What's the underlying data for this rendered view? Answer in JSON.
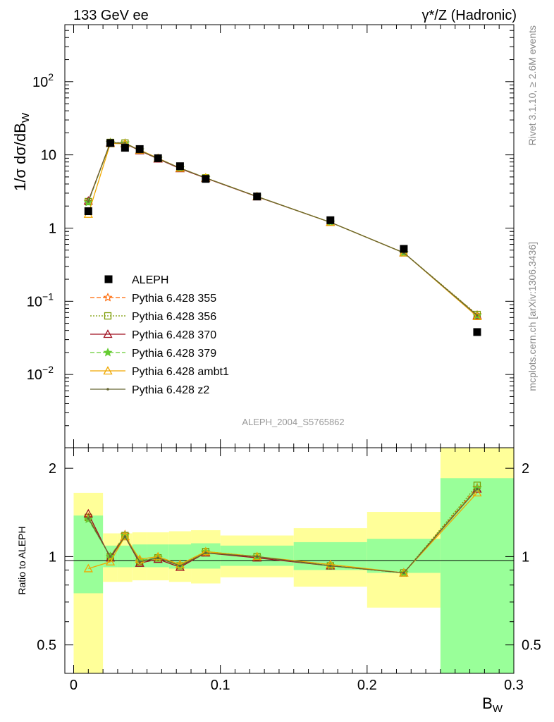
{
  "header": {
    "left": "133 GeV ee",
    "right": "γ*/Z (Hadronic)"
  },
  "side_text": {
    "rivet": "Rivet 3.1.10, ≥ 2.6M events",
    "site": "mcplots.cern.ch [arXiv:1306.3436]"
  },
  "analysis_id": "ALEPH_2004_S5765862",
  "axes": {
    "ylabel_main": "1/σ  dσ/dB",
    "ylabel_main_sub": "W",
    "ylabel_ratio": "Ratio to ALEPH",
    "xlabel": "B",
    "xlabel_sub": "W",
    "main_ticks": [
      {
        "value": 0.01,
        "base": "10",
        "exp": "−2"
      },
      {
        "value": 0.1,
        "base": "10",
        "exp": "−1"
      },
      {
        "value": 1,
        "base": "1",
        "exp": ""
      },
      {
        "value": 10,
        "base": "10",
        "exp": ""
      },
      {
        "value": 100,
        "base": "10",
        "exp": "2"
      }
    ],
    "ratio_ticks": [
      "0.5",
      "1",
      "2"
    ],
    "x_ticks": [
      "0",
      "0.1",
      "0.2",
      "0.3"
    ]
  },
  "chart_data": {
    "type": "line",
    "main_panel": {
      "yscale": "log",
      "ylim": [
        0.001,
        600
      ],
      "xlim": [
        -0.006,
        0.3
      ],
      "x": [
        0.01,
        0.025,
        0.035,
        0.045,
        0.0575,
        0.0725,
        0.09,
        0.125,
        0.175,
        0.225,
        0.275
      ],
      "data": {
        "name": "ALEPH",
        "y": [
          1.7,
          14.5,
          12.5,
          12.0,
          9.0,
          7.0,
          4.7,
          2.7,
          1.28,
          0.52,
          0.038
        ]
      },
      "series": [
        {
          "name": "Pythia 6.428 355",
          "color": "#ff6600",
          "marker": "star-open",
          "dash": "6,3",
          "y": [
            2.3,
            14.8,
            14.5,
            11.6,
            8.9,
            6.6,
            4.85,
            2.7,
            1.2,
            0.46,
            0.065
          ]
        },
        {
          "name": "Pythia 6.428 356",
          "color": "#7a9a00",
          "marker": "square-open",
          "dash": "2,2",
          "y": [
            2.3,
            14.8,
            14.5,
            11.5,
            8.9,
            6.6,
            4.85,
            2.7,
            1.2,
            0.46,
            0.066
          ]
        },
        {
          "name": "Pythia 6.428 370",
          "color": "#a01020",
          "marker": "triangle-open",
          "dash": "",
          "y": [
            2.35,
            14.6,
            14.3,
            11.4,
            8.8,
            6.5,
            4.8,
            2.68,
            1.2,
            0.46,
            0.064
          ]
        },
        {
          "name": "Pythia 6.428 379",
          "color": "#66cc33",
          "marker": "star",
          "dash": "6,3",
          "y": [
            2.25,
            14.7,
            14.4,
            11.6,
            8.9,
            6.6,
            4.85,
            2.7,
            1.2,
            0.46,
            0.064
          ]
        },
        {
          "name": "Pythia 6.428 ambt1",
          "color": "#f0a800",
          "marker": "triangle-open",
          "dash": "",
          "y": [
            1.55,
            14.3,
            14.2,
            11.7,
            9.0,
            6.6,
            4.85,
            2.7,
            1.2,
            0.46,
            0.062
          ]
        },
        {
          "name": "Pythia 6.428 z2",
          "color": "#666633",
          "marker": "dot",
          "dash": "",
          "y": [
            2.3,
            14.7,
            14.4,
            11.5,
            8.9,
            6.6,
            4.85,
            2.7,
            1.2,
            0.46,
            0.064
          ]
        }
      ]
    },
    "ratio_panel": {
      "yscale": "log",
      "ylim": [
        0.4,
        2.35
      ],
      "reference": 1.0,
      "bins": [
        [
          0.0,
          0.02
        ],
        [
          0.02,
          0.03
        ],
        [
          0.03,
          0.04
        ],
        [
          0.04,
          0.05
        ],
        [
          0.05,
          0.065
        ],
        [
          0.065,
          0.08
        ],
        [
          0.08,
          0.1
        ],
        [
          0.1,
          0.15
        ],
        [
          0.15,
          0.2
        ],
        [
          0.2,
          0.25
        ],
        [
          0.25,
          0.3
        ]
      ],
      "band_inner": [
        [
          0.75,
          1.38
        ],
        [
          0.92,
          1.09
        ],
        [
          0.92,
          1.09
        ],
        [
          0.92,
          1.1
        ],
        [
          0.92,
          1.1
        ],
        [
          0.91,
          1.1
        ],
        [
          0.91,
          1.11
        ],
        [
          0.93,
          1.09
        ],
        [
          0.9,
          1.12
        ],
        [
          0.88,
          1.15
        ],
        [
          0.36,
          1.85
        ]
      ],
      "band_outer": [
        [
          0.36,
          1.65
        ],
        [
          0.82,
          1.2
        ],
        [
          0.82,
          1.2
        ],
        [
          0.83,
          1.21
        ],
        [
          0.83,
          1.21
        ],
        [
          0.82,
          1.22
        ],
        [
          0.81,
          1.23
        ],
        [
          0.85,
          1.18
        ],
        [
          0.79,
          1.25
        ],
        [
          0.67,
          1.42
        ],
        [
          0.36,
          2.35
        ]
      ],
      "series": [
        {
          "name": "Pythia 6.428 355",
          "y": [
            1.36,
            1.0,
            1.19,
            0.96,
            0.99,
            0.94,
            1.03,
            1.0,
            0.93,
            0.88,
            1.72
          ]
        },
        {
          "name": "Pythia 6.428 356",
          "y": [
            1.36,
            1.0,
            1.18,
            0.96,
            0.99,
            0.93,
            1.04,
            1.0,
            0.93,
            0.88,
            1.75
          ]
        },
        {
          "name": "Pythia 6.428 370",
          "y": [
            1.4,
            0.99,
            1.17,
            0.95,
            0.98,
            0.92,
            1.03,
            0.99,
            0.93,
            0.88,
            1.7
          ]
        },
        {
          "name": "Pythia 6.428 379",
          "y": [
            1.34,
            1.0,
            1.18,
            0.97,
            0.99,
            0.94,
            1.04,
            1.0,
            0.93,
            0.88,
            1.71
          ]
        },
        {
          "name": "Pythia 6.428 ambt1",
          "y": [
            0.91,
            0.96,
            1.17,
            0.98,
            1.0,
            0.94,
            1.04,
            1.0,
            0.94,
            0.88,
            1.65
          ]
        },
        {
          "name": "Pythia 6.428 z2",
          "y": [
            1.35,
            1.0,
            1.17,
            0.96,
            0.99,
            0.93,
            1.03,
            1.0,
            0.93,
            0.88,
            1.7
          ]
        }
      ]
    },
    "legend_position": "center-left",
    "colors": {
      "band_inner": "#99ff99",
      "band_outer": "#ffff99",
      "data": "#000000"
    }
  }
}
